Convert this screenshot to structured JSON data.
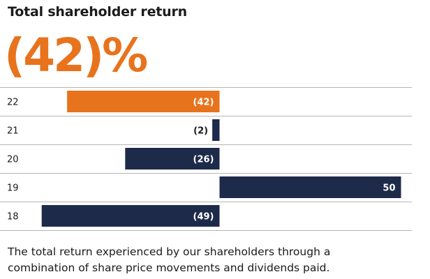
{
  "title": "Total shareholder return",
  "headline": "(42)%",
  "chart_data": {
    "type": "bar",
    "orientation": "horizontal",
    "categories": [
      "22",
      "21",
      "20",
      "19",
      "18"
    ],
    "values": [
      -42,
      -2,
      -26,
      50,
      -49
    ],
    "value_labels": [
      "(42)",
      "(2)",
      "(26)",
      "50",
      "(49)"
    ],
    "highlight_category": "22",
    "colors": {
      "highlight": "#e8731d",
      "default": "#1e2a4a"
    },
    "xlim": [
      -55,
      55
    ],
    "title": "Total shareholder return",
    "xlabel": "",
    "ylabel": "",
    "grid": false
  },
  "footnote": {
    "line1": "The total return experienced by our shareholders through a",
    "line2": "combination of share price movements and dividends paid."
  }
}
